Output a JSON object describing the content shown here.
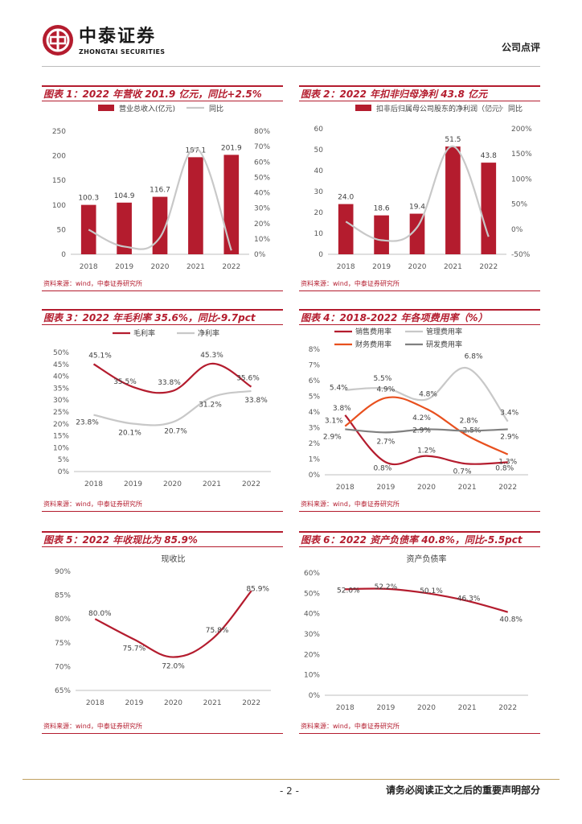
{
  "header": {
    "brand_cn": "中泰证券",
    "brand_en": "ZHONGTAI SECURITIES",
    "doc_type": "公司点评"
  },
  "colors": {
    "accent": "#b41c2e",
    "gray_line": "#c8c8c8",
    "orange": "#e8501e",
    "dark_gray": "#808080"
  },
  "footer": {
    "page": "- 2 -",
    "note": "请务必阅读正文之后的重要声明部分"
  },
  "panels": [
    {
      "title": "图表 1：2022 年营收 201.9 亿元，同比+2.5%",
      "source": "资料来源：wind，中泰证券研究所"
    },
    {
      "title": "图表 2：2022 年扣非归母净利 43.8 亿元",
      "source": "资料来源：wind，中泰证券研究所"
    },
    {
      "title": "图表 3：2022 年毛利率 35.6%，同比-9.7pct",
      "source": "资料来源：wind，中泰证券研究所"
    },
    {
      "title": "图表 4：2018-2022 年各项费用率（%）",
      "source": "资料来源：wind，中泰证券研究所"
    },
    {
      "title": "图表 5：2022 年收现比为 85.9%",
      "source": "资料来源：wind，中泰证券研究所"
    },
    {
      "title": "图表 6：2022 资产负债率 40.8%，同比-5.5pct",
      "source": "资料来源：wind，中泰证券研究所"
    }
  ],
  "chart_data": [
    {
      "type": "bar",
      "categories": [
        "2018",
        "2019",
        "2020",
        "2021",
        "2022"
      ],
      "series": [
        {
          "name": "营业总收入(亿元)",
          "values": [
            100.3,
            104.9,
            116.7,
            197.1,
            201.9
          ],
          "labels": [
            "100.3",
            "104.9",
            "116.7",
            "197.1",
            "201.9"
          ],
          "axis": "left",
          "kind": "bar"
        },
        {
          "name": "同比",
          "values": [
            16,
            5,
            11,
            69,
            2.5
          ],
          "axis": "right",
          "kind": "line"
        }
      ],
      "ylim": [
        0,
        250
      ],
      "yticks": [
        "0",
        "50",
        "100",
        "150",
        "200",
        "250"
      ],
      "y2lim": [
        0,
        80
      ],
      "y2ticks": [
        "0%",
        "10%",
        "20%",
        "30%",
        "40%",
        "50%",
        "60%",
        "70%",
        "80%"
      ]
    },
    {
      "type": "bar",
      "categories": [
        "2018",
        "2019",
        "2020",
        "2021",
        "2022"
      ],
      "series": [
        {
          "name": "扣非后归属母公司股东的净利润（亿元）",
          "values": [
            24.0,
            18.6,
            19.4,
            51.5,
            43.8
          ],
          "labels": [
            "24.0",
            "18.6",
            "19.4",
            "51.5",
            "43.8"
          ],
          "axis": "left",
          "kind": "bar"
        },
        {
          "name": "同比",
          "values": [
            15,
            -22,
            4,
            165,
            -15
          ],
          "axis": "right",
          "kind": "line"
        }
      ],
      "ylim": [
        0,
        60
      ],
      "yticks": [
        "0",
        "10",
        "20",
        "30",
        "40",
        "50",
        "60"
      ],
      "y2lim": [
        -50,
        200
      ],
      "y2ticks": [
        "-50%",
        "0%",
        "50%",
        "100%",
        "150%",
        "200%"
      ]
    },
    {
      "type": "line",
      "categories": [
        "2018",
        "2019",
        "2020",
        "2021",
        "2022"
      ],
      "series": [
        {
          "name": "毛利率",
          "values": [
            45.1,
            35.5,
            33.8,
            45.3,
            35.6
          ],
          "labels": [
            "45.1%",
            "35.5%",
            "33.8%",
            "45.3%",
            "35.6%"
          ]
        },
        {
          "name": "净利率",
          "values": [
            23.8,
            20.1,
            20.7,
            31.2,
            33.8
          ],
          "labels": [
            "23.8%",
            "20.1%",
            "20.7%",
            "31.2%",
            "33.8%"
          ]
        }
      ],
      "ylim": [
        0,
        50
      ],
      "yticks": [
        "0%",
        "5%",
        "10%",
        "15%",
        "20%",
        "25%",
        "30%",
        "35%",
        "40%",
        "45%",
        "50%"
      ]
    },
    {
      "type": "line",
      "categories": [
        "2018",
        "2019",
        "2020",
        "2021",
        "2022"
      ],
      "series": [
        {
          "name": "销售费用率",
          "values": [
            3.8,
            0.8,
            1.2,
            0.7,
            0.8
          ],
          "labels": [
            "3.8%",
            "0.8%",
            "1.2%",
            "0.7%",
            "0.8%"
          ]
        },
        {
          "name": "管理费用率",
          "values": [
            5.4,
            5.5,
            4.8,
            6.8,
            3.4
          ],
          "labels": [
            "5.4%",
            "5.5%",
            "4.8%",
            "6.8%",
            "3.4%"
          ]
        },
        {
          "name": "财务费用率",
          "values": [
            3.1,
            4.9,
            4.2,
            2.5,
            1.3
          ],
          "labels": [
            "3.1%",
            "4.9%",
            "4.2%",
            "2.5%",
            "1.3%"
          ]
        },
        {
          "name": "研发费用率",
          "values": [
            2.9,
            2.7,
            2.9,
            2.8,
            2.9
          ],
          "labels": [
            "2.9%",
            "2.7%",
            "2.9%",
            "2.8%",
            "2.9%"
          ]
        }
      ],
      "ylim": [
        0,
        8
      ],
      "yticks": [
        "0%",
        "1%",
        "2%",
        "3%",
        "4%",
        "5%",
        "6%",
        "7%",
        "8%"
      ]
    },
    {
      "type": "line",
      "title": "现收比",
      "categories": [
        "2018",
        "2019",
        "2020",
        "2021",
        "2022"
      ],
      "series": [
        {
          "name": "收现比",
          "values": [
            80.0,
            75.7,
            72.0,
            75.8,
            85.9
          ],
          "labels": [
            "80.0%",
            "75.7%",
            "72.0%",
            "75.8%",
            "85.9%"
          ]
        }
      ],
      "ylim": [
        65,
        90
      ],
      "yticks": [
        "65%",
        "70%",
        "75%",
        "80%",
        "85%",
        "90%"
      ]
    },
    {
      "type": "line",
      "title": "资产负债率",
      "categories": [
        "2018",
        "2019",
        "2020",
        "2021",
        "2022"
      ],
      "series": [
        {
          "name": "资产负债率",
          "values": [
            52.0,
            52.2,
            50.1,
            46.3,
            40.8
          ],
          "labels": [
            "52.0%",
            "52.2%",
            "50.1%",
            "46.3%",
            "40.8%"
          ]
        }
      ],
      "ylim": [
        0,
        60
      ],
      "yticks": [
        "0%",
        "10%",
        "20%",
        "30%",
        "40%",
        "50%",
        "60%"
      ]
    }
  ]
}
